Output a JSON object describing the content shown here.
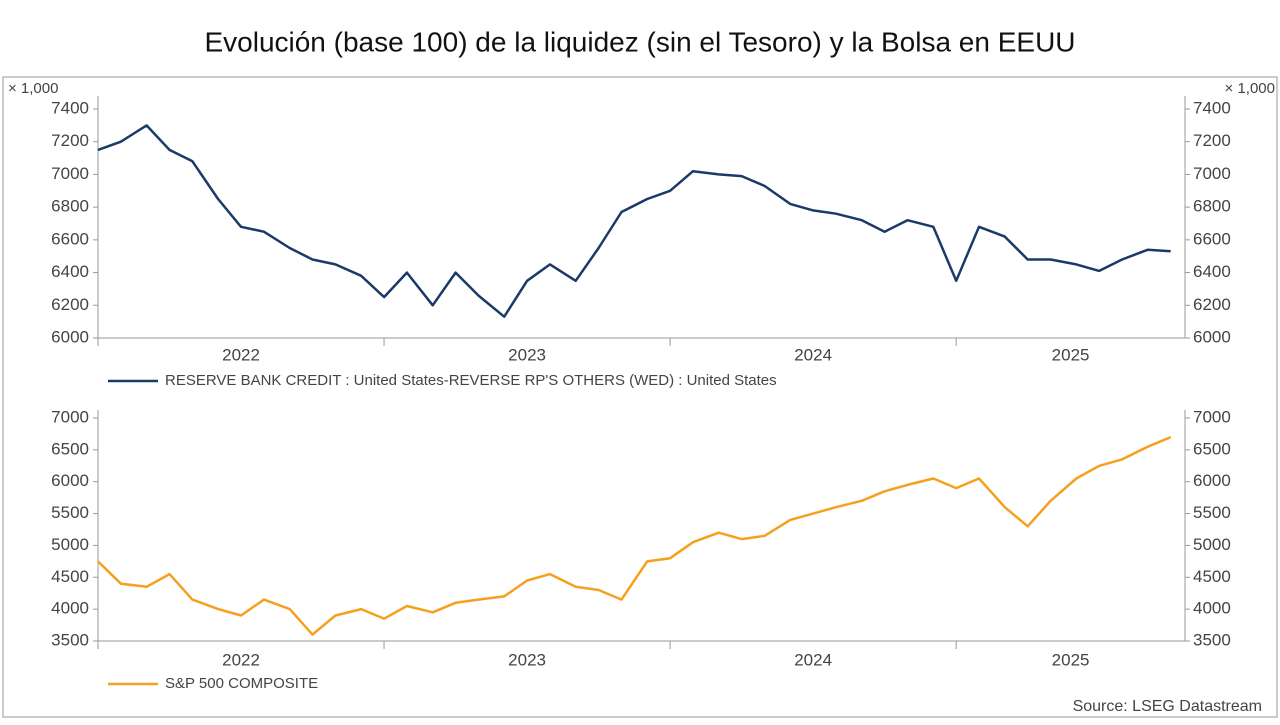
{
  "title": "Evolución (base 100) de la liquidez (sin el Tesoro) y la Bolsa en EEUU",
  "source": "Source: LSEG Datastream",
  "chart_data": [
    {
      "type": "line",
      "y_unit_label": "× 1,000",
      "x": [
        2022.0,
        2022.08,
        2022.17,
        2022.25,
        2022.33,
        2022.42,
        2022.5,
        2022.58,
        2022.67,
        2022.75,
        2022.83,
        2022.92,
        2023.0,
        2023.08,
        2023.17,
        2023.25,
        2023.33,
        2023.42,
        2023.5,
        2023.58,
        2023.67,
        2023.75,
        2023.83,
        2023.92,
        2024.0,
        2024.08,
        2024.17,
        2024.25,
        2024.33,
        2024.42,
        2024.5,
        2024.58,
        2024.67,
        2024.75,
        2024.83,
        2024.92,
        2025.0,
        2025.08,
        2025.17,
        2025.25,
        2025.33,
        2025.42,
        2025.5,
        2025.58,
        2025.67,
        2025.75
      ],
      "xlim": [
        2022,
        2025.8
      ],
      "xticks": [
        2022,
        2023,
        2024,
        2025
      ],
      "ylim": [
        6000,
        7400
      ],
      "yticks": [
        6000,
        6200,
        6400,
        6600,
        6800,
        7000,
        7200,
        7400
      ],
      "grid": false,
      "series": [
        {
          "name": "RESERVE BANK CREDIT : United States-REVERSE RP'S OTHERS (WED) : United States",
          "color": "#1b3a68",
          "values": [
            7150,
            7200,
            7300,
            7150,
            7080,
            6850,
            6680,
            6650,
            6550,
            6480,
            6450,
            6380,
            6250,
            6400,
            6200,
            6400,
            6260,
            6130,
            6350,
            6450,
            6350,
            6550,
            6770,
            6850,
            6900,
            7020,
            7000,
            6990,
            6930,
            6820,
            6780,
            6760,
            6720,
            6650,
            6720,
            6680,
            6350,
            6680,
            6620,
            6480,
            6480,
            6450,
            6410,
            6480,
            6540,
            6530
          ]
        }
      ]
    },
    {
      "type": "line",
      "x": [
        2022.0,
        2022.08,
        2022.17,
        2022.25,
        2022.33,
        2022.42,
        2022.5,
        2022.58,
        2022.67,
        2022.75,
        2022.83,
        2022.92,
        2023.0,
        2023.08,
        2023.17,
        2023.25,
        2023.33,
        2023.42,
        2023.5,
        2023.58,
        2023.67,
        2023.75,
        2023.83,
        2023.92,
        2024.0,
        2024.08,
        2024.17,
        2024.25,
        2024.33,
        2024.42,
        2024.5,
        2024.58,
        2024.67,
        2024.75,
        2024.83,
        2024.92,
        2025.0,
        2025.08,
        2025.17,
        2025.25,
        2025.33,
        2025.42,
        2025.5,
        2025.58,
        2025.67,
        2025.75
      ],
      "xlim": [
        2022,
        2025.8
      ],
      "xticks": [
        2022,
        2023,
        2024,
        2025
      ],
      "ylim": [
        3500,
        7000
      ],
      "yticks": [
        3500,
        4000,
        4500,
        5000,
        5500,
        6000,
        6500,
        7000
      ],
      "grid": false,
      "series": [
        {
          "name": "S&P 500 COMPOSITE",
          "color": "#f5a01e",
          "values": [
            4750,
            4400,
            4350,
            4550,
            4150,
            4000,
            3900,
            4150,
            4000,
            3600,
            3900,
            4000,
            3850,
            4050,
            3950,
            4100,
            4150,
            4200,
            4450,
            4550,
            4350,
            4300,
            4150,
            4750,
            4800,
            5050,
            5200,
            5100,
            5150,
            5400,
            5500,
            5600,
            5700,
            5850,
            5950,
            6050,
            5900,
            6050,
            5600,
            5300,
            5700,
            6050,
            6250,
            6350,
            6550,
            6700
          ]
        }
      ]
    }
  ]
}
